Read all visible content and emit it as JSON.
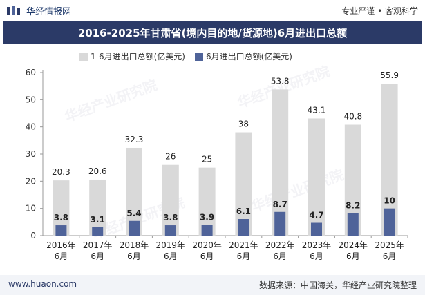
{
  "header": {
    "logo_text": "华经情报网",
    "slogan": "专业严谨 • 客观科学"
  },
  "footer": {
    "left": "www.huaon.com",
    "right": "数据来源：中国海关，华经产业研究院整理"
  },
  "watermark": "华经产业研究院",
  "colors": {
    "title_bg": "#2b3a67",
    "series1": "#d9d9d9",
    "series2": "#4f6399"
  },
  "chart_data": {
    "type": "bar",
    "title": "2016-2025年甘肃省(境内目的地/货源地)6月进出口总额",
    "categories": [
      [
        "2016年",
        "6月"
      ],
      [
        "2017年",
        "6月"
      ],
      [
        "2018年",
        "6月"
      ],
      [
        "2019年",
        "6月"
      ],
      [
        "2020年",
        "6月"
      ],
      [
        "2021年",
        "6月"
      ],
      [
        "2022年",
        "6月"
      ],
      [
        "2023年",
        "6月"
      ],
      [
        "2024年",
        "6月"
      ],
      [
        "2025年",
        "6月"
      ]
    ],
    "series": [
      {
        "name": "1-6月进出口总额(亿美元)",
        "values": [
          20.3,
          20.6,
          32.3,
          26,
          25,
          38,
          53.8,
          43.1,
          40.8,
          55.9
        ]
      },
      {
        "name": "6月进出口总额(亿美元)",
        "values": [
          3.8,
          3.1,
          5.4,
          3.8,
          3.9,
          6.1,
          8.7,
          4.7,
          8.2,
          10
        ]
      }
    ],
    "value_labels": [
      [
        "20.3",
        "20.6",
        "32.3",
        "26",
        "25",
        "38",
        "53.8",
        "43.1",
        "40.8",
        "55.9"
      ],
      [
        "3.8",
        "3.1",
        "5.4",
        "3.8",
        "3.9",
        "6.1",
        "8.7",
        "4.7",
        "8.2",
        "10"
      ]
    ],
    "ylim": [
      0,
      60
    ],
    "yticks": [
      0,
      10,
      20,
      30,
      40,
      50,
      60
    ],
    "ytick_labels": [
      "0",
      "10",
      "20",
      "30",
      "40",
      "50",
      "60"
    ],
    "legend_position": "top",
    "grid": false
  }
}
